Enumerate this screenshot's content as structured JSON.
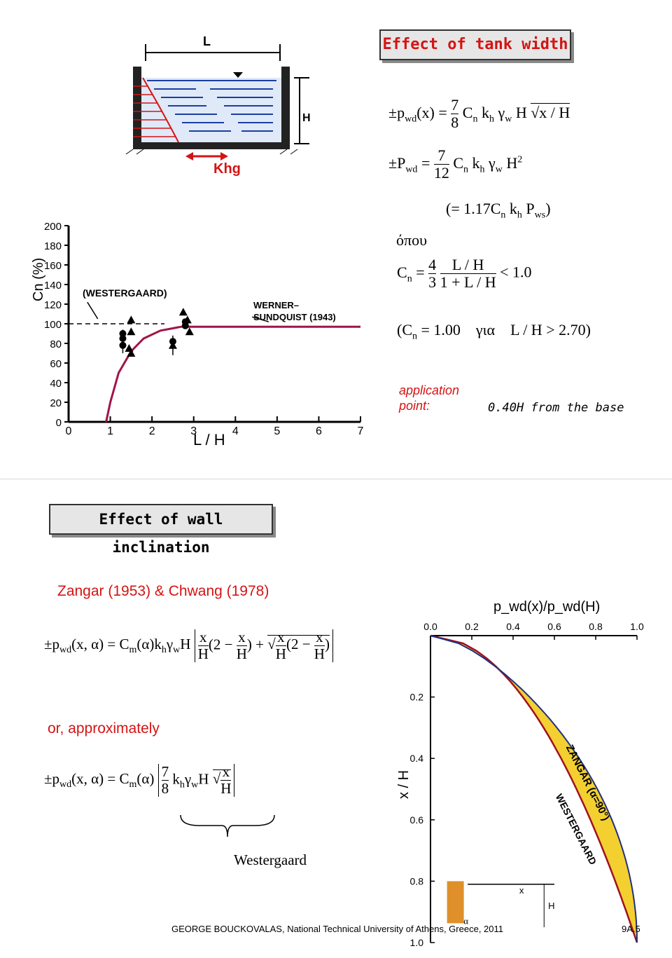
{
  "section1": {
    "title": "Effect of tank width",
    "eq1": "±p_wd(x) = (7/8) C_n k_h γ_w H √(x / H)",
    "eq2": "±P_wd = (7/12) C_n k_h γ_w H²",
    "eq2b": "(= 1.17 C_n k_h P_ws)",
    "where": "όπου",
    "eq3": "C_n = (4/3)(L/H)/(1 + L/H) < 1.0",
    "eq4": "(C_n = 1.00  για  L/H > 2.70)",
    "app_label_1": "application",
    "app_label_2": "point:",
    "app_value": "0.40H from the base",
    "tank_L": "L",
    "tank_H": "H",
    "tank_khg": "Khg"
  },
  "chart1": {
    "ylabel": "Cn (%)",
    "xlabel": "L / H",
    "label_westergaard": "(WESTERGAARD)",
    "label_werner1": "WERNER–",
    "label_werner2": "SUNDQUIST   (1943)",
    "y_ticks": [
      "200",
      "180",
      "160",
      "140",
      "120",
      "100",
      "80",
      "60",
      "40",
      "20",
      "0"
    ],
    "x_ticks": [
      "0",
      "1",
      "2",
      "3",
      "4",
      "5",
      "6",
      "7"
    ]
  },
  "chart_data": {
    "type": "line",
    "xlabel": "L / H",
    "ylabel": "Cn (%)",
    "xlim": [
      0,
      7
    ],
    "ylim": [
      0,
      200
    ],
    "series": [
      {
        "x": [
          0.9,
          1.0,
          1.2,
          1.5,
          1.8,
          2.2,
          2.7,
          3.5,
          5.0,
          7.0
        ],
        "values": [
          0,
          20,
          50,
          72,
          85,
          93,
          97,
          97,
          97,
          97
        ]
      }
    ],
    "reference_line": {
      "name": "WESTERGAARD",
      "y": 100
    },
    "markers": {
      "circles": [
        [
          1.3,
          90
        ],
        [
          1.3,
          85
        ],
        [
          1.3,
          78
        ],
        [
          2.5,
          82
        ],
        [
          2.8,
          98
        ],
        [
          2.8,
          102
        ]
      ],
      "triangles": [
        [
          1.5,
          104
        ],
        [
          1.5,
          92
        ],
        [
          1.45,
          75
        ],
        [
          1.5,
          70
        ],
        [
          2.5,
          78
        ],
        [
          2.75,
          112
        ],
        [
          2.85,
          104
        ],
        [
          2.9,
          92
        ]
      ]
    }
  },
  "section2": {
    "title": "Effect of wall inclination",
    "subtitle": "Zangar (1953) & Chwang (1978)",
    "eq5": "±p_wd(x,α) = C_m(α) k_h γ_w H [ (x/H)(2 − x/H) + √((x/H)(2 − x/H)) ]",
    "or_label": "or, approximately",
    "eq6": "±p_wd(x,α) = C_m(α) [ (7/8) k_h γ_w H √(x/H) ]",
    "westergaard": "Westergaard"
  },
  "chart2": {
    "top_label": "p_wd(x)/p_wd(H)",
    "x_ticks": [
      "0.0",
      "0.2",
      "0.4",
      "0.6",
      "0.8",
      "1.0"
    ],
    "y_ticks": [
      "0.0",
      "0.2",
      "0.4",
      "0.6",
      "0.8",
      "1.0"
    ],
    "ylabel": "x / H",
    "label_zangar": "ZANGAR (α=90°)",
    "label_westergaard": "WESTERGAARD",
    "label_x": "x",
    "label_H": "H",
    "label_alpha": "α"
  },
  "footer": {
    "credit": "GEORGE BOUCKOVALAS, National Technical University of Athens, Greece, 2011",
    "page": "9A.5"
  }
}
